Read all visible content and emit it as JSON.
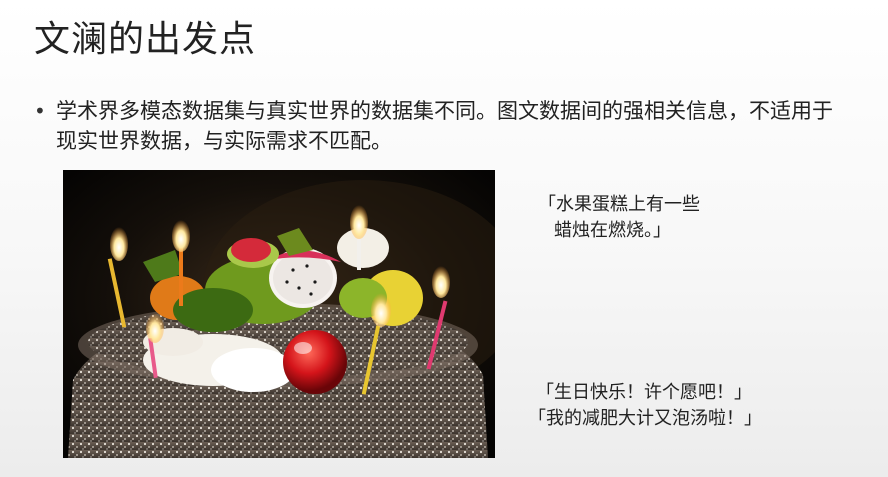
{
  "slide": {
    "title": "文澜的出发点",
    "bullet": "学术界多模态数据集与真实世界的数据集不同。图文数据间的强相关信息，不适用于现实世界数据，与实际需求不匹配。",
    "captions": {
      "literal": {
        "line1": "「水果蛋糕上有一些",
        "line2": "蜡烛在燃烧。」"
      },
      "real": {
        "line1": "「生日快乐！许个愿吧！」",
        "line2": "「我的减肥大计又泡汤啦！」"
      }
    },
    "image_subject": "birthday-fruit-cake-with-lit-candles"
  }
}
